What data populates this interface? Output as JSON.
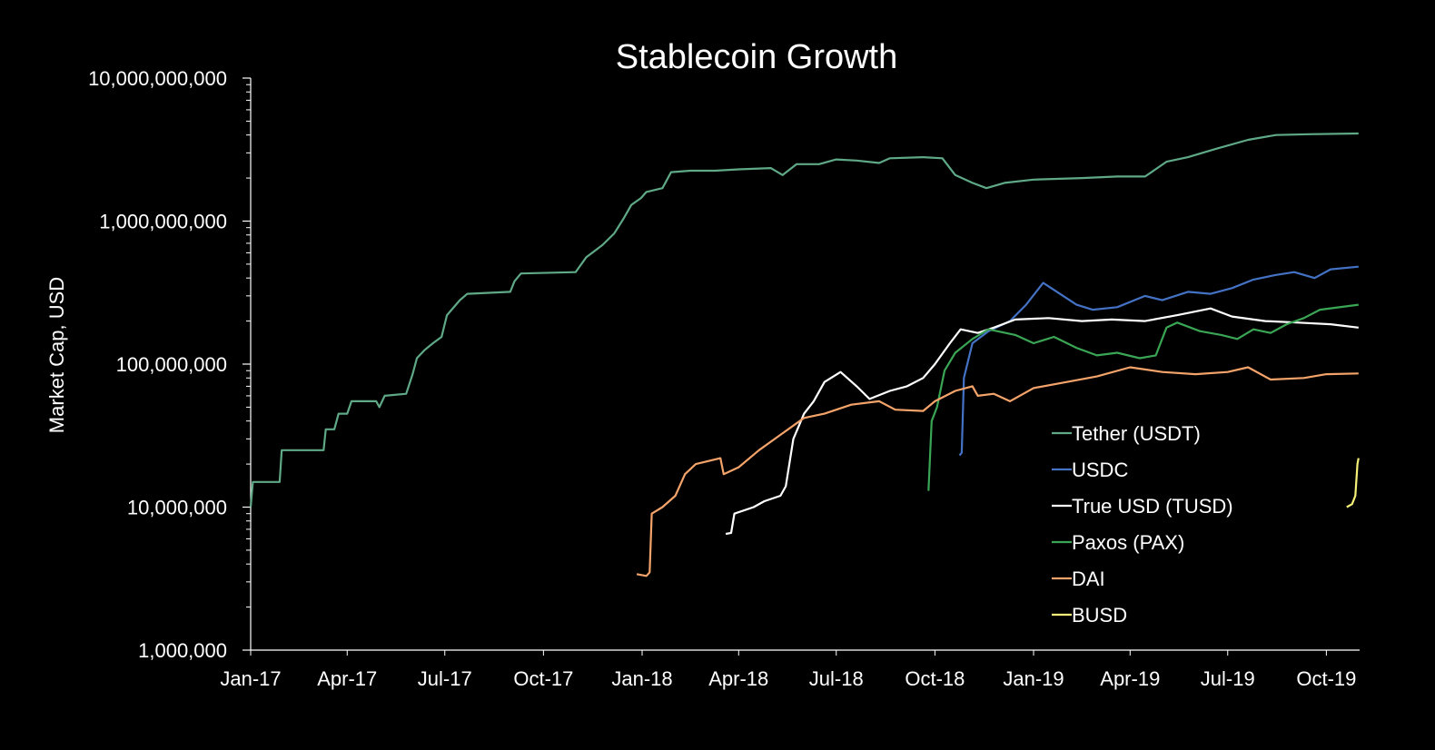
{
  "chart_data": {
    "type": "line",
    "title": "Stablecoin Growth",
    "xlabel": "",
    "ylabel": "Market Cap, USD",
    "y_scale": "log",
    "ylim": [
      1000000,
      10000000000
    ],
    "xlim": [
      "2017-01-01",
      "2019-11-01"
    ],
    "grid": false,
    "legend_position": "right-bottom",
    "y_ticks": [
      {
        "value": 10000000000,
        "label": "10,000,000,000"
      },
      {
        "value": 1000000000,
        "label": "1,000,000,000"
      },
      {
        "value": 100000000,
        "label": "100,000,000"
      },
      {
        "value": 10000000,
        "label": "10,000,000"
      },
      {
        "value": 1000000,
        "label": "1,000,000"
      }
    ],
    "x_ticks": [
      {
        "date": "2017-01-01",
        "label": "Jan-17"
      },
      {
        "date": "2017-04-01",
        "label": "Apr-17"
      },
      {
        "date": "2017-07-01",
        "label": "Jul-17"
      },
      {
        "date": "2017-10-01",
        "label": "Oct-17"
      },
      {
        "date": "2018-01-01",
        "label": "Jan-18"
      },
      {
        "date": "2018-04-01",
        "label": "Apr-18"
      },
      {
        "date": "2018-07-01",
        "label": "Jul-18"
      },
      {
        "date": "2018-10-01",
        "label": "Oct-18"
      },
      {
        "date": "2019-01-01",
        "label": "Jan-19"
      },
      {
        "date": "2019-04-01",
        "label": "Apr-19"
      },
      {
        "date": "2019-07-01",
        "label": "Jul-19"
      },
      {
        "date": "2019-10-01",
        "label": "Oct-19"
      }
    ],
    "series": [
      {
        "name": "Tether (USDT)",
        "color": "#5fa987",
        "points": [
          [
            "2017-01-01",
            10000000
          ],
          [
            "2017-01-03",
            15000000
          ],
          [
            "2017-01-28",
            15000000
          ],
          [
            "2017-01-30",
            25000000
          ],
          [
            "2017-03-10",
            25000000
          ],
          [
            "2017-03-12",
            35000000
          ],
          [
            "2017-03-20",
            35000000
          ],
          [
            "2017-03-24",
            45000000
          ],
          [
            "2017-04-01",
            45000000
          ],
          [
            "2017-04-05",
            55000000
          ],
          [
            "2017-04-28",
            55000000
          ],
          [
            "2017-05-01",
            50000000
          ],
          [
            "2017-05-06",
            60000000
          ],
          [
            "2017-05-26",
            62000000
          ],
          [
            "2017-06-01",
            85000000
          ],
          [
            "2017-06-05",
            110000000
          ],
          [
            "2017-06-12",
            125000000
          ],
          [
            "2017-06-20",
            140000000
          ],
          [
            "2017-06-28",
            155000000
          ],
          [
            "2017-07-03",
            220000000
          ],
          [
            "2017-07-15",
            280000000
          ],
          [
            "2017-07-22",
            310000000
          ],
          [
            "2017-08-31",
            320000000
          ],
          [
            "2017-09-04",
            380000000
          ],
          [
            "2017-09-10",
            430000000
          ],
          [
            "2017-10-31",
            440000000
          ],
          [
            "2017-11-10",
            560000000
          ],
          [
            "2017-11-25",
            680000000
          ],
          [
            "2017-12-06",
            820000000
          ],
          [
            "2017-12-15",
            1050000000
          ],
          [
            "2017-12-22",
            1300000000
          ],
          [
            "2017-12-31",
            1450000000
          ],
          [
            "2018-01-05",
            1600000000
          ],
          [
            "2018-01-20",
            1700000000
          ],
          [
            "2018-01-28",
            2200000000
          ],
          [
            "2018-02-15",
            2250000000
          ],
          [
            "2018-03-10",
            2250000000
          ],
          [
            "2018-04-01",
            2300000000
          ],
          [
            "2018-05-01",
            2350000000
          ],
          [
            "2018-05-12",
            2100000000
          ],
          [
            "2018-05-25",
            2500000000
          ],
          [
            "2018-06-15",
            2500000000
          ],
          [
            "2018-07-01",
            2700000000
          ],
          [
            "2018-07-20",
            2650000000
          ],
          [
            "2018-08-10",
            2550000000
          ],
          [
            "2018-08-20",
            2750000000
          ],
          [
            "2018-09-20",
            2800000000
          ],
          [
            "2018-10-08",
            2750000000
          ],
          [
            "2018-10-20",
            2100000000
          ],
          [
            "2018-11-05",
            1850000000
          ],
          [
            "2018-11-18",
            1700000000
          ],
          [
            "2018-12-05",
            1850000000
          ],
          [
            "2019-01-01",
            1950000000
          ],
          [
            "2019-02-15",
            2000000000
          ],
          [
            "2019-03-20",
            2050000000
          ],
          [
            "2019-04-15",
            2050000000
          ],
          [
            "2019-05-05",
            2600000000
          ],
          [
            "2019-05-25",
            2800000000
          ],
          [
            "2019-06-20",
            3200000000
          ],
          [
            "2019-07-20",
            3700000000
          ],
          [
            "2019-08-15",
            4000000000
          ],
          [
            "2019-09-15",
            4050000000
          ],
          [
            "2019-10-31",
            4100000000
          ]
        ]
      },
      {
        "name": "USDC",
        "color": "#4472c4",
        "points": [
          [
            "2018-10-24",
            23000000
          ],
          [
            "2018-10-26",
            24000000
          ],
          [
            "2018-10-28",
            80000000
          ],
          [
            "2018-11-05",
            140000000
          ],
          [
            "2018-11-20",
            170000000
          ],
          [
            "2018-12-10",
            200000000
          ],
          [
            "2018-12-25",
            260000000
          ],
          [
            "2019-01-10",
            370000000
          ],
          [
            "2019-01-20",
            330000000
          ],
          [
            "2019-02-10",
            260000000
          ],
          [
            "2019-02-25",
            240000000
          ],
          [
            "2019-03-20",
            250000000
          ],
          [
            "2019-04-15",
            300000000
          ],
          [
            "2019-05-01",
            280000000
          ],
          [
            "2019-05-25",
            320000000
          ],
          [
            "2019-06-15",
            310000000
          ],
          [
            "2019-07-05",
            340000000
          ],
          [
            "2019-07-25",
            390000000
          ],
          [
            "2019-08-15",
            420000000
          ],
          [
            "2019-09-01",
            440000000
          ],
          [
            "2019-09-20",
            400000000
          ],
          [
            "2019-10-05",
            460000000
          ],
          [
            "2019-10-31",
            480000000
          ]
        ]
      },
      {
        "name": "True USD (TUSD)",
        "color": "#ffffff",
        "points": [
          [
            "2018-03-20",
            6500000
          ],
          [
            "2018-03-25",
            6600000
          ],
          [
            "2018-03-28",
            9000000
          ],
          [
            "2018-04-15",
            10000000
          ],
          [
            "2018-04-25",
            11000000
          ],
          [
            "2018-05-10",
            12000000
          ],
          [
            "2018-05-15",
            14000000
          ],
          [
            "2018-05-22",
            30000000
          ],
          [
            "2018-06-01",
            45000000
          ],
          [
            "2018-06-10",
            55000000
          ],
          [
            "2018-06-20",
            75000000
          ],
          [
            "2018-07-05",
            88000000
          ],
          [
            "2018-07-20",
            70000000
          ],
          [
            "2018-08-01",
            57000000
          ],
          [
            "2018-08-20",
            65000000
          ],
          [
            "2018-09-05",
            70000000
          ],
          [
            "2018-09-20",
            80000000
          ],
          [
            "2018-10-01",
            100000000
          ],
          [
            "2018-10-15",
            140000000
          ],
          [
            "2018-10-25",
            175000000
          ],
          [
            "2018-11-10",
            165000000
          ],
          [
            "2018-11-25",
            180000000
          ],
          [
            "2018-12-15",
            205000000
          ],
          [
            "2019-01-15",
            210000000
          ],
          [
            "2019-02-15",
            200000000
          ],
          [
            "2019-03-15",
            205000000
          ],
          [
            "2019-04-15",
            200000000
          ],
          [
            "2019-05-15",
            220000000
          ],
          [
            "2019-06-15",
            245000000
          ],
          [
            "2019-07-05",
            215000000
          ],
          [
            "2019-08-05",
            200000000
          ],
          [
            "2019-09-05",
            195000000
          ],
          [
            "2019-10-05",
            190000000
          ],
          [
            "2019-10-31",
            180000000
          ]
        ]
      },
      {
        "name": "Paxos (PAX)",
        "color": "#3aa655",
        "points": [
          [
            "2018-09-25",
            13000000
          ],
          [
            "2018-09-28",
            40000000
          ],
          [
            "2018-10-03",
            50000000
          ],
          [
            "2018-10-10",
            90000000
          ],
          [
            "2018-10-20",
            120000000
          ],
          [
            "2018-11-05",
            150000000
          ],
          [
            "2018-11-20",
            175000000
          ],
          [
            "2018-12-15",
            160000000
          ],
          [
            "2019-01-01",
            140000000
          ],
          [
            "2019-01-20",
            155000000
          ],
          [
            "2019-02-10",
            130000000
          ],
          [
            "2019-03-01",
            115000000
          ],
          [
            "2019-03-20",
            120000000
          ],
          [
            "2019-04-10",
            110000000
          ],
          [
            "2019-04-25",
            115000000
          ],
          [
            "2019-05-05",
            180000000
          ],
          [
            "2019-05-15",
            195000000
          ],
          [
            "2019-06-05",
            170000000
          ],
          [
            "2019-06-25",
            160000000
          ],
          [
            "2019-07-10",
            150000000
          ],
          [
            "2019-07-25",
            175000000
          ],
          [
            "2019-08-10",
            165000000
          ],
          [
            "2019-08-25",
            190000000
          ],
          [
            "2019-09-10",
            210000000
          ],
          [
            "2019-09-25",
            240000000
          ],
          [
            "2019-10-31",
            260000000
          ]
        ]
      },
      {
        "name": "DAI",
        "color": "#f4a46a",
        "points": [
          [
            "2017-12-27",
            3400000
          ],
          [
            "2018-01-05",
            3300000
          ],
          [
            "2018-01-08",
            3500000
          ],
          [
            "2018-01-10",
            9000000
          ],
          [
            "2018-01-20",
            10000000
          ],
          [
            "2018-02-01",
            12000000
          ],
          [
            "2018-02-10",
            17000000
          ],
          [
            "2018-02-20",
            20000000
          ],
          [
            "2018-03-15",
            22000000
          ],
          [
            "2018-03-18",
            17000000
          ],
          [
            "2018-04-01",
            19000000
          ],
          [
            "2018-04-20",
            25000000
          ],
          [
            "2018-05-10",
            32000000
          ],
          [
            "2018-06-01",
            42000000
          ],
          [
            "2018-06-20",
            45000000
          ],
          [
            "2018-07-15",
            52000000
          ],
          [
            "2018-08-10",
            55000000
          ],
          [
            "2018-08-25",
            48000000
          ],
          [
            "2018-09-20",
            47000000
          ],
          [
            "2018-10-01",
            55000000
          ],
          [
            "2018-10-20",
            65000000
          ],
          [
            "2018-11-05",
            70000000
          ],
          [
            "2018-11-10",
            60000000
          ],
          [
            "2018-11-25",
            62000000
          ],
          [
            "2018-12-10",
            55000000
          ],
          [
            "2019-01-01",
            68000000
          ],
          [
            "2019-02-01",
            75000000
          ],
          [
            "2019-03-01",
            82000000
          ],
          [
            "2019-04-01",
            95000000
          ],
          [
            "2019-05-01",
            88000000
          ],
          [
            "2019-06-01",
            85000000
          ],
          [
            "2019-07-01",
            88000000
          ],
          [
            "2019-07-20",
            95000000
          ],
          [
            "2019-08-10",
            78000000
          ],
          [
            "2019-09-10",
            80000000
          ],
          [
            "2019-10-01",
            85000000
          ],
          [
            "2019-10-31",
            86000000
          ]
        ]
      },
      {
        "name": "BUSD",
        "color": "#f5f078",
        "points": [
          [
            "2019-10-20",
            10000000
          ],
          [
            "2019-10-25",
            10500000
          ],
          [
            "2019-10-28",
            12000000
          ],
          [
            "2019-10-30",
            20000000
          ],
          [
            "2019-10-31",
            22000000
          ]
        ]
      }
    ]
  }
}
